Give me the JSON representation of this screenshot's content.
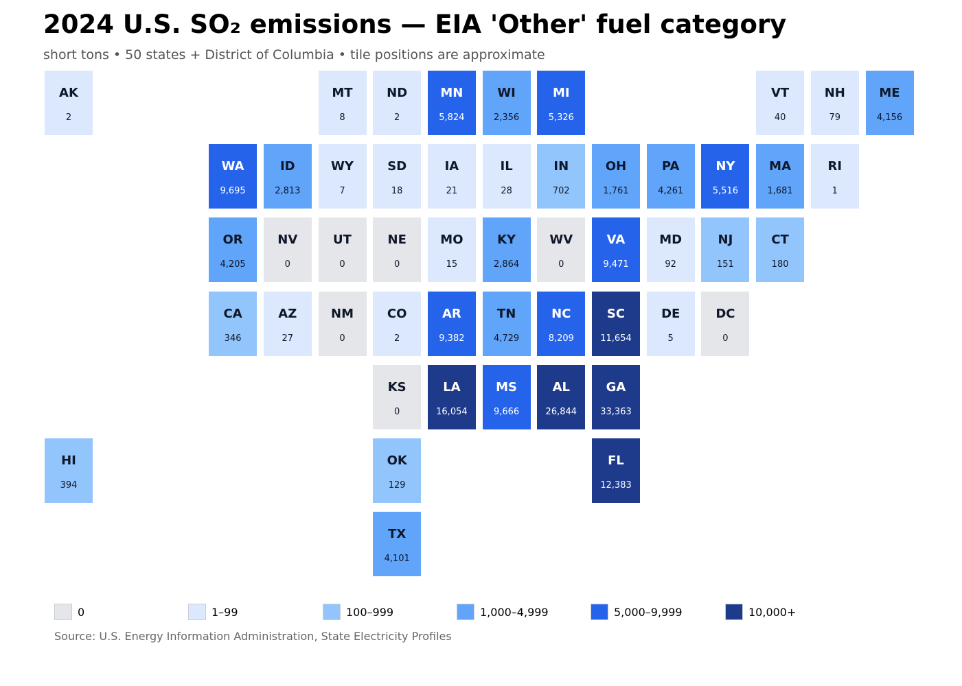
{
  "chart_data": {
    "type": "tile-map",
    "title": "2024 U.S. SO₂ emissions — EIA 'Other' fuel category",
    "subtitle": "short tons • 50 states + District of Columbia • tile positions are approximate",
    "source": "Source: U.S. Energy Information Administration, State Electricity Profiles",
    "units": "short tons",
    "bins": [
      {
        "label": "0",
        "min": 0,
        "max": 0,
        "color": "#e4e6ea"
      },
      {
        "label": "1–99",
        "min": 1,
        "max": 99,
        "color": "#dbe8fd"
      },
      {
        "label": "100–999",
        "min": 100,
        "max": 999,
        "color": "#93c5fd"
      },
      {
        "label": "1,000–4,999",
        "min": 1000,
        "max": 4999,
        "color": "#60a5fa"
      },
      {
        "label": "5,000–9,999",
        "min": 5000,
        "max": 9999,
        "color": "#2563eb"
      },
      {
        "label": "10,000+",
        "min": 10000,
        "max": null,
        "color": "#1e3a8a"
      }
    ],
    "states": [
      {
        "abbr": "AK",
        "value": 2,
        "label": "2",
        "col": 0,
        "row": 0
      },
      {
        "abbr": "MT",
        "value": 8,
        "label": "8",
        "col": 5,
        "row": 0
      },
      {
        "abbr": "ND",
        "value": 2,
        "label": "2",
        "col": 6,
        "row": 0
      },
      {
        "abbr": "MN",
        "value": 5824,
        "label": "5,824",
        "col": 7,
        "row": 0
      },
      {
        "abbr": "WI",
        "value": 2356,
        "label": "2,356",
        "col": 8,
        "row": 0
      },
      {
        "abbr": "MI",
        "value": 5326,
        "label": "5,326",
        "col": 9,
        "row": 0
      },
      {
        "abbr": "VT",
        "value": 40,
        "label": "40",
        "col": 13,
        "row": 0
      },
      {
        "abbr": "NH",
        "value": 79,
        "label": "79",
        "col": 14,
        "row": 0
      },
      {
        "abbr": "ME",
        "value": 4156,
        "label": "4,156",
        "col": 15,
        "row": 0
      },
      {
        "abbr": "WA",
        "value": 9695,
        "label": "9,695",
        "col": 3,
        "row": 1
      },
      {
        "abbr": "ID",
        "value": 2813,
        "label": "2,813",
        "col": 4,
        "row": 1
      },
      {
        "abbr": "WY",
        "value": 7,
        "label": "7",
        "col": 5,
        "row": 1
      },
      {
        "abbr": "SD",
        "value": 18,
        "label": "18",
        "col": 6,
        "row": 1
      },
      {
        "abbr": "IA",
        "value": 21,
        "label": "21",
        "col": 7,
        "row": 1
      },
      {
        "abbr": "IL",
        "value": 28,
        "label": "28",
        "col": 8,
        "row": 1
      },
      {
        "abbr": "IN",
        "value": 702,
        "label": "702",
        "col": 9,
        "row": 1
      },
      {
        "abbr": "OH",
        "value": 1761,
        "label": "1,761",
        "col": 10,
        "row": 1
      },
      {
        "abbr": "PA",
        "value": 4261,
        "label": "4,261",
        "col": 11,
        "row": 1
      },
      {
        "abbr": "NY",
        "value": 5516,
        "label": "5,516",
        "col": 12,
        "row": 1
      },
      {
        "abbr": "MA",
        "value": 1681,
        "label": "1,681",
        "col": 13,
        "row": 1
      },
      {
        "abbr": "RI",
        "value": 1,
        "label": "1",
        "col": 14,
        "row": 1
      },
      {
        "abbr": "OR",
        "value": 4205,
        "label": "4,205",
        "col": 3,
        "row": 2
      },
      {
        "abbr": "NV",
        "value": 0,
        "label": "0",
        "col": 4,
        "row": 2
      },
      {
        "abbr": "UT",
        "value": 0,
        "label": "0",
        "col": 5,
        "row": 2
      },
      {
        "abbr": "NE",
        "value": 0,
        "label": "0",
        "col": 6,
        "row": 2
      },
      {
        "abbr": "MO",
        "value": 15,
        "label": "15",
        "col": 7,
        "row": 2
      },
      {
        "abbr": "KY",
        "value": 2864,
        "label": "2,864",
        "col": 8,
        "row": 2
      },
      {
        "abbr": "WV",
        "value": 0,
        "label": "0",
        "col": 9,
        "row": 2
      },
      {
        "abbr": "VA",
        "value": 9471,
        "label": "9,471",
        "col": 10,
        "row": 2
      },
      {
        "abbr": "MD",
        "value": 92,
        "label": "92",
        "col": 11,
        "row": 2
      },
      {
        "abbr": "NJ",
        "value": 151,
        "label": "151",
        "col": 12,
        "row": 2
      },
      {
        "abbr": "CT",
        "value": 180,
        "label": "180",
        "col": 13,
        "row": 2
      },
      {
        "abbr": "CA",
        "value": 346,
        "label": "346",
        "col": 3,
        "row": 3
      },
      {
        "abbr": "AZ",
        "value": 27,
        "label": "27",
        "col": 4,
        "row": 3
      },
      {
        "abbr": "NM",
        "value": 0,
        "label": "0",
        "col": 5,
        "row": 3
      },
      {
        "abbr": "CO",
        "value": 2,
        "label": "2",
        "col": 6,
        "row": 3
      },
      {
        "abbr": "AR",
        "value": 9382,
        "label": "9,382",
        "col": 7,
        "row": 3
      },
      {
        "abbr": "TN",
        "value": 4729,
        "label": "4,729",
        "col": 8,
        "row": 3
      },
      {
        "abbr": "NC",
        "value": 8209,
        "label": "8,209",
        "col": 9,
        "row": 3
      },
      {
        "abbr": "SC",
        "value": 11654,
        "label": "11,654",
        "col": 10,
        "row": 3
      },
      {
        "abbr": "DE",
        "value": 5,
        "label": "5",
        "col": 11,
        "row": 3
      },
      {
        "abbr": "DC",
        "value": 0,
        "label": "0",
        "col": 12,
        "row": 3
      },
      {
        "abbr": "KS",
        "value": 0,
        "label": "0",
        "col": 6,
        "row": 4
      },
      {
        "abbr": "LA",
        "value": 16054,
        "label": "16,054",
        "col": 7,
        "row": 4
      },
      {
        "abbr": "MS",
        "value": 9666,
        "label": "9,666",
        "col": 8,
        "row": 4
      },
      {
        "abbr": "AL",
        "value": 26844,
        "label": "26,844",
        "col": 9,
        "row": 4
      },
      {
        "abbr": "GA",
        "value": 33363,
        "label": "33,363",
        "col": 10,
        "row": 4
      },
      {
        "abbr": "HI",
        "value": 394,
        "label": "394",
        "col": 0,
        "row": 5
      },
      {
        "abbr": "OK",
        "value": 129,
        "label": "129",
        "col": 6,
        "row": 5
      },
      {
        "abbr": "FL",
        "value": 12383,
        "label": "12,383",
        "col": 10,
        "row": 5
      },
      {
        "abbr": "TX",
        "value": 4101,
        "label": "4,101",
        "col": 6,
        "row": 6
      }
    ],
    "text_colors": {
      "dark": "#0f172a",
      "light": "#ffffff"
    }
  }
}
